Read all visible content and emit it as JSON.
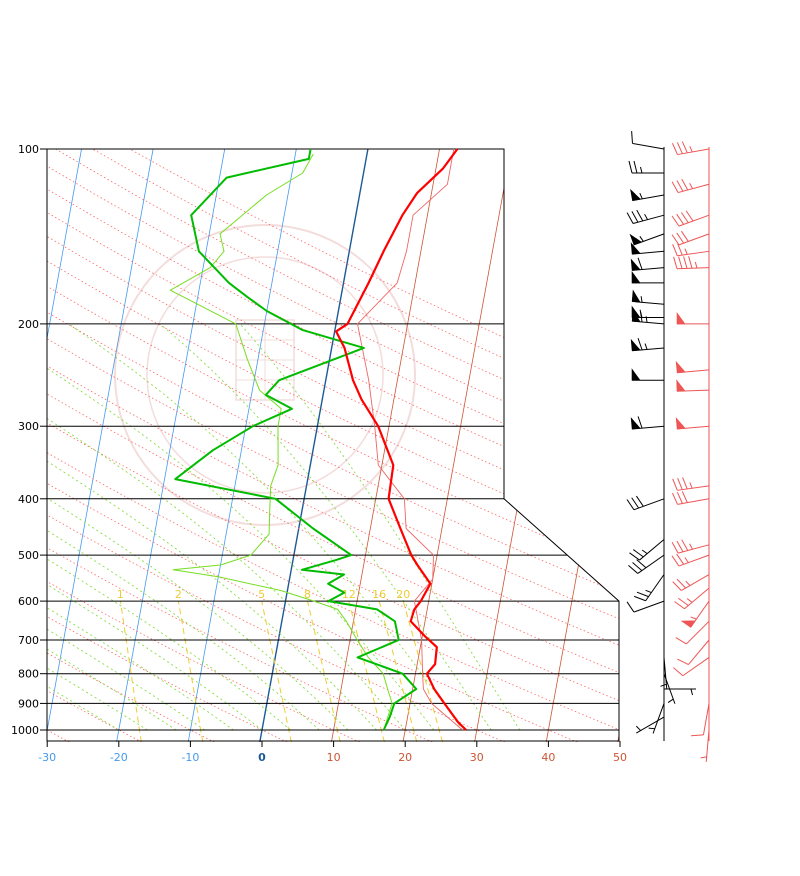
{
  "chart_data": {
    "type": "line",
    "title": "",
    "xlabel": "",
    "ylabel": "",
    "xlim": [
      -30,
      50
    ],
    "pressure_range": [
      1000,
      100
    ],
    "pressure_levels": [
      100,
      200,
      300,
      400,
      500,
      600,
      700,
      800,
      900,
      1000
    ],
    "pressure_labels": [
      "100",
      "200",
      "300",
      "400",
      "500",
      "600",
      "700",
      "800",
      "900",
      "1000"
    ],
    "temperature_ticks": [
      {
        "value": -30,
        "label": "-30"
      },
      {
        "value": -20,
        "label": "-20"
      },
      {
        "value": -10,
        "label": "-10"
      },
      {
        "value": 0,
        "label": "0"
      },
      {
        "value": 10,
        "label": "10"
      },
      {
        "value": 20,
        "label": "20"
      },
      {
        "value": 30,
        "label": "30"
      },
      {
        "value": 40,
        "label": "40"
      },
      {
        "value": 50,
        "label": "50"
      }
    ],
    "mixing_ratio_labels": [
      {
        "value": 1,
        "label": "1"
      },
      {
        "value": 2,
        "label": "2"
      },
      {
        "value": 5,
        "label": "5"
      },
      {
        "value": 8,
        "label": "8"
      },
      {
        "value": 12,
        "label": "12"
      },
      {
        "value": 16,
        "label": "16"
      },
      {
        "value": 20,
        "label": "20"
      }
    ],
    "colors": {
      "temperature": "#ff0000",
      "dewpoint": "#00bb00",
      "light_dewpoint": "#77dd22",
      "light_temperature": "#ee6666",
      "isotherm_cold": "#4499ee",
      "isotherm_zero": "#1c5a96",
      "isotherm_warm": "#cc5533",
      "dry_adiabat": "#ff6666",
      "moist_adiabat": "#88dd44",
      "mixing_ratio": "#eecc33",
      "wind_obs": "#000000",
      "wind_model": "#ee5555"
    },
    "series": [
      {
        "values": [
          [
            1000,
            28.5
          ],
          [
            970,
            27.2
          ],
          [
            940,
            26.2
          ],
          [
            900,
            24.8
          ],
          [
            850,
            23.0
          ],
          [
            800,
            21.6
          ],
          [
            770,
            22.5
          ],
          [
            720,
            22.3
          ],
          [
            690,
            20.4
          ],
          [
            650,
            18.0
          ],
          [
            620,
            18.2
          ],
          [
            600,
            18.9
          ],
          [
            560,
            19.8
          ],
          [
            520,
            17.5
          ],
          [
            500,
            16.4
          ],
          [
            450,
            14.2
          ],
          [
            400,
            11.8
          ],
          [
            350,
            11.6
          ],
          [
            300,
            8.5
          ],
          [
            270,
            5.5
          ],
          [
            250,
            3.8
          ],
          [
            220,
            1.8
          ],
          [
            206,
            0.2
          ],
          [
            200,
            1.6
          ],
          [
            170,
            3.5
          ],
          [
            150,
            4.8
          ],
          [
            130,
            6.5
          ],
          [
            119,
            8.0
          ],
          [
            108,
            11.0
          ],
          [
            100,
            12.5
          ]
        ]
      },
      {
        "values": [
          [
            1000,
            17.0
          ],
          [
            950,
            17.5
          ],
          [
            900,
            17.8
          ],
          [
            850,
            20.5
          ],
          [
            800,
            18.2
          ],
          [
            750,
            11.5
          ],
          [
            700,
            16.8
          ],
          [
            650,
            15.8
          ],
          [
            620,
            13.0
          ],
          [
            600,
            6.0
          ],
          [
            580,
            8.0
          ],
          [
            560,
            5.5
          ],
          [
            540,
            7.5
          ],
          [
            530,
            1.5
          ],
          [
            510,
            6.0
          ],
          [
            500,
            8.0
          ],
          [
            450,
            2.0
          ],
          [
            400,
            -4.0
          ],
          [
            370,
            -18.5
          ],
          [
            330,
            -14.0
          ],
          [
            300,
            -9.0
          ],
          [
            280,
            -4.0
          ],
          [
            265,
            -8.0
          ],
          [
            250,
            -6.5
          ],
          [
            220,
            4.5
          ],
          [
            205,
            -4.5
          ],
          [
            190,
            -10.0
          ],
          [
            180,
            -13.0
          ],
          [
            170,
            -16.0
          ],
          [
            150,
            -21.0
          ],
          [
            130,
            -23.0
          ],
          [
            112,
            -19.0
          ],
          [
            104,
            -8.0
          ],
          [
            100,
            -8.0
          ]
        ]
      },
      {
        "values": [
          [
            1000,
            17.0
          ],
          [
            900,
            17.5
          ],
          [
            850,
            16.5
          ],
          [
            800,
            15.5
          ],
          [
            750,
            13.0
          ],
          [
            700,
            11.0
          ],
          [
            650,
            9.0
          ],
          [
            620,
            7.5
          ],
          [
            600,
            4.0
          ],
          [
            575,
            -1.0
          ],
          [
            545,
            -10.0
          ],
          [
            530,
            -16.5
          ],
          [
            520,
            -10.0
          ],
          [
            500,
            -6.0
          ],
          [
            460,
            -4.0
          ],
          [
            420,
            -4.5
          ],
          [
            380,
            -5.0
          ],
          [
            350,
            -4.5
          ],
          [
            300,
            -5.5
          ],
          [
            280,
            -5.5
          ],
          [
            260,
            -9.0
          ],
          [
            230,
            -11.5
          ],
          [
            200,
            -14.0
          ],
          [
            175,
            -24.0
          ],
          [
            160,
            -19.0
          ],
          [
            150,
            -17.5
          ],
          [
            140,
            -18.5
          ],
          [
            120,
            -13.0
          ],
          [
            110,
            -8.5
          ],
          [
            102,
            -7.5
          ]
        ]
      },
      {
        "values": [
          [
            1000,
            28.0
          ],
          [
            900,
            23.0
          ],
          [
            850,
            21.5
          ],
          [
            800,
            21.0
          ],
          [
            700,
            20.0
          ],
          [
            600,
            18.0
          ],
          [
            550,
            20.0
          ],
          [
            500,
            19.5
          ],
          [
            450,
            15.0
          ],
          [
            400,
            14.0
          ],
          [
            350,
            9.5
          ],
          [
            300,
            8.0
          ],
          [
            250,
            6.0
          ],
          [
            200,
            3.0
          ],
          [
            170,
            7.5
          ],
          [
            150,
            8.0
          ],
          [
            130,
            8.0
          ],
          [
            115,
            12.0
          ],
          [
            100,
            12.0
          ]
        ]
      }
    ],
    "winds_observed": [
      {
        "p": 100,
        "kt": 10,
        "dir": 280
      },
      {
        "p": 110,
        "kt": 25,
        "dir": 270
      },
      {
        "p": 120,
        "kt": 55,
        "dir": 260
      },
      {
        "p": 130,
        "kt": 35,
        "dir": 255
      },
      {
        "p": 140,
        "kt": 55,
        "dir": 250
      },
      {
        "p": 150,
        "kt": 50,
        "dir": 265
      },
      {
        "p": 160,
        "kt": 60,
        "dir": 265
      },
      {
        "p": 170,
        "kt": 50,
        "dir": 270
      },
      {
        "p": 185,
        "kt": 55,
        "dir": 275
      },
      {
        "p": 195,
        "kt": 55,
        "dir": 270
      },
      {
        "p": 200,
        "kt": 65,
        "dir": 275
      },
      {
        "p": 220,
        "kt": 65,
        "dir": 265
      },
      {
        "p": 250,
        "kt": 50,
        "dir": 270
      },
      {
        "p": 300,
        "kt": 60,
        "dir": 265
      },
      {
        "p": 400,
        "kt": 30,
        "dir": 250
      },
      {
        "p": 470,
        "kt": 25,
        "dir": 230
      },
      {
        "p": 500,
        "kt": 30,
        "dir": 235
      },
      {
        "p": 540,
        "kt": 25,
        "dir": 215
      },
      {
        "p": 600,
        "kt": 10,
        "dir": 250
      },
      {
        "p": 750,
        "kt": 5,
        "dir": 175
      },
      {
        "p": 800,
        "kt": 5,
        "dir": 160
      },
      {
        "p": 850,
        "kt": 5,
        "dir": 90
      },
      {
        "p": 900,
        "kt": 5,
        "dir": 200
      },
      {
        "p": 950,
        "kt": 5,
        "dir": 240
      }
    ],
    "winds_model": [
      {
        "p": 100,
        "kt": 35,
        "dir": 260
      },
      {
        "p": 115,
        "kt": 35,
        "dir": 255
      },
      {
        "p": 130,
        "kt": 40,
        "dir": 250
      },
      {
        "p": 140,
        "kt": 30,
        "dir": 250
      },
      {
        "p": 150,
        "kt": 25,
        "dir": 262
      },
      {
        "p": 160,
        "kt": 45,
        "dir": 268
      },
      {
        "p": 200,
        "kt": 50,
        "dir": 270
      },
      {
        "p": 240,
        "kt": 50,
        "dir": 265
      },
      {
        "p": 260,
        "kt": 50,
        "dir": 268
      },
      {
        "p": 300,
        "kt": 50,
        "dir": 265
      },
      {
        "p": 380,
        "kt": 35,
        "dir": 262
      },
      {
        "p": 400,
        "kt": 30,
        "dir": 260
      },
      {
        "p": 480,
        "kt": 35,
        "dir": 255
      },
      {
        "p": 500,
        "kt": 25,
        "dir": 250
      },
      {
        "p": 540,
        "kt": 25,
        "dir": 240
      },
      {
        "p": 570,
        "kt": 25,
        "dir": 230
      },
      {
        "p": 600,
        "kt": 55,
        "dir": 215
      },
      {
        "p": 650,
        "kt": 10,
        "dir": 225
      },
      {
        "p": 700,
        "kt": 10,
        "dir": 220
      },
      {
        "p": 750,
        "kt": 10,
        "dir": 235
      },
      {
        "p": 900,
        "kt": 10,
        "dir": 190
      },
      {
        "p": 1000,
        "kt": 5,
        "dir": 185
      }
    ]
  }
}
